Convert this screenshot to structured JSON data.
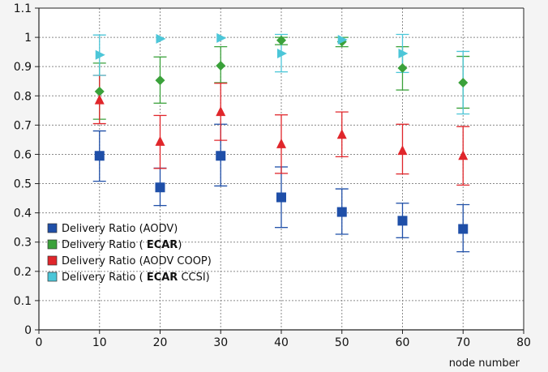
{
  "chart_data": {
    "type": "scatter",
    "title": "",
    "xlabel": "node number",
    "ylabel": "",
    "xlim": [
      0,
      80
    ],
    "ylim": [
      0,
      1.1
    ],
    "grid": true,
    "legend_position": "bottom-left",
    "x_ticks": [
      "0",
      "10",
      "20",
      "30",
      "40",
      "50",
      "60",
      "70",
      "80"
    ],
    "y_ticks": [
      "0",
      "0.1",
      "0.2",
      "0.3",
      "0.4",
      "0.5",
      "0.6",
      "0.7",
      "0.8",
      "0.9",
      "1",
      "1.1"
    ],
    "series": [
      {
        "legend_prefix": "Delivery Ratio (AODV)",
        "legend_bold": "",
        "legend_suffix": "",
        "color": "#1f4fa8",
        "marker": "square",
        "x": [
          10,
          20,
          30,
          40,
          50,
          60,
          70
        ],
        "y": [
          0.595,
          0.487,
          0.595,
          0.453,
          0.403,
          0.373,
          0.345
        ],
        "err_low": [
          0.508,
          0.425,
          0.492,
          0.35,
          0.327,
          0.315,
          0.267
        ],
        "err_high": [
          0.68,
          0.553,
          0.703,
          0.557,
          0.482,
          0.433,
          0.428
        ]
      },
      {
        "legend_prefix": "Delivery Ratio ( ",
        "legend_bold": "ECAR",
        "legend_suffix": ")",
        "color": "#3aa13a",
        "marker": "diamond",
        "x": [
          10,
          20,
          30,
          40,
          50,
          60,
          70
        ],
        "y": [
          0.815,
          0.853,
          0.903,
          0.99,
          0.985,
          0.895,
          0.845
        ],
        "err_low": [
          0.72,
          0.775,
          0.845,
          0.975,
          0.968,
          0.82,
          0.758
        ],
        "err_high": [
          0.912,
          0.933,
          0.968,
          1.0,
          1.0,
          0.968,
          0.935
        ]
      },
      {
        "legend_prefix": "Delivery Ratio (AODV COOP)",
        "legend_bold": "",
        "legend_suffix": "",
        "color": "#e0262b",
        "marker": "triangle",
        "x": [
          10,
          20,
          30,
          40,
          50,
          60,
          70
        ],
        "y": [
          0.785,
          0.643,
          0.745,
          0.635,
          0.667,
          0.612,
          0.595
        ],
        "err_low": [
          0.705,
          0.552,
          0.648,
          0.535,
          0.592,
          0.533,
          0.495
        ],
        "err_high": [
          0.87,
          0.733,
          0.843,
          0.735,
          0.745,
          0.703,
          0.695
        ]
      },
      {
        "legend_prefix": "Delivery Ratio ( ",
        "legend_bold": "ECAR",
        "legend_suffix": "  CCSI)",
        "color": "#4cc6d8",
        "marker": "right-triangle",
        "x": [
          10,
          20,
          30,
          40,
          50,
          60,
          70
        ],
        "y": [
          0.94,
          0.995,
          0.998,
          0.945,
          0.992,
          0.945,
          null
        ],
        "err_low": [
          0.87,
          null,
          null,
          0.882,
          null,
          0.88,
          0.738
        ],
        "err_high": [
          1.008,
          null,
          null,
          1.01,
          null,
          1.01,
          0.952
        ]
      }
    ]
  }
}
